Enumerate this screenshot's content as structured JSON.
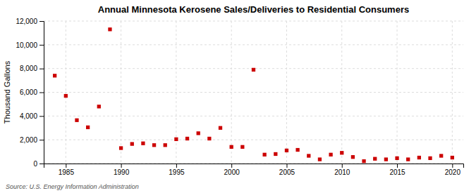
{
  "chart_data": {
    "type": "scatter",
    "title": "Annual Minnesota Kerosene Sales/Deliveries to Residential Consumers",
    "ylabel": "Thousand Gallons",
    "annotations": [
      "Source: U.S. Energy Information Administration"
    ],
    "x": [
      1984,
      1985,
      1986,
      1987,
      1988,
      1989,
      1990,
      1991,
      1992,
      1993,
      1994,
      1995,
      1996,
      1997,
      1998,
      1999,
      2000,
      2001,
      2002,
      2003,
      2004,
      2005,
      2006,
      2007,
      2008,
      2009,
      2010,
      2011,
      2012,
      2013,
      2014,
      2015,
      2016,
      2017,
      2018,
      2019,
      2020
    ],
    "values": [
      7400,
      5700,
      3650,
      3050,
      4800,
      11300,
      1300,
      1650,
      1700,
      1550,
      1550,
      2050,
      2100,
      2550,
      2100,
      3000,
      1400,
      1400,
      7900,
      750,
      800,
      1100,
      1150,
      650,
      350,
      750,
      900,
      550,
      200,
      400,
      350,
      450,
      350,
      500,
      450,
      650,
      500
    ],
    "color": "#cc0000",
    "marker": "square",
    "xlim": [
      1983,
      2021
    ],
    "xticks": [
      1985,
      1990,
      1995,
      2000,
      2005,
      2010,
      2015,
      2020
    ],
    "ylim": [
      0,
      12000
    ],
    "yticks": [
      0,
      {
        "value": 2000,
        "label": "2,000"
      },
      {
        "value": 4000,
        "label": "4,000"
      },
      {
        "value": 6000,
        "label": "6,000"
      },
      {
        "value": 8000,
        "label": "8,000"
      },
      {
        "value": 10000,
        "label": "10,000"
      },
      {
        "value": 12000,
        "label": "12,000"
      }
    ],
    "grid": true
  }
}
